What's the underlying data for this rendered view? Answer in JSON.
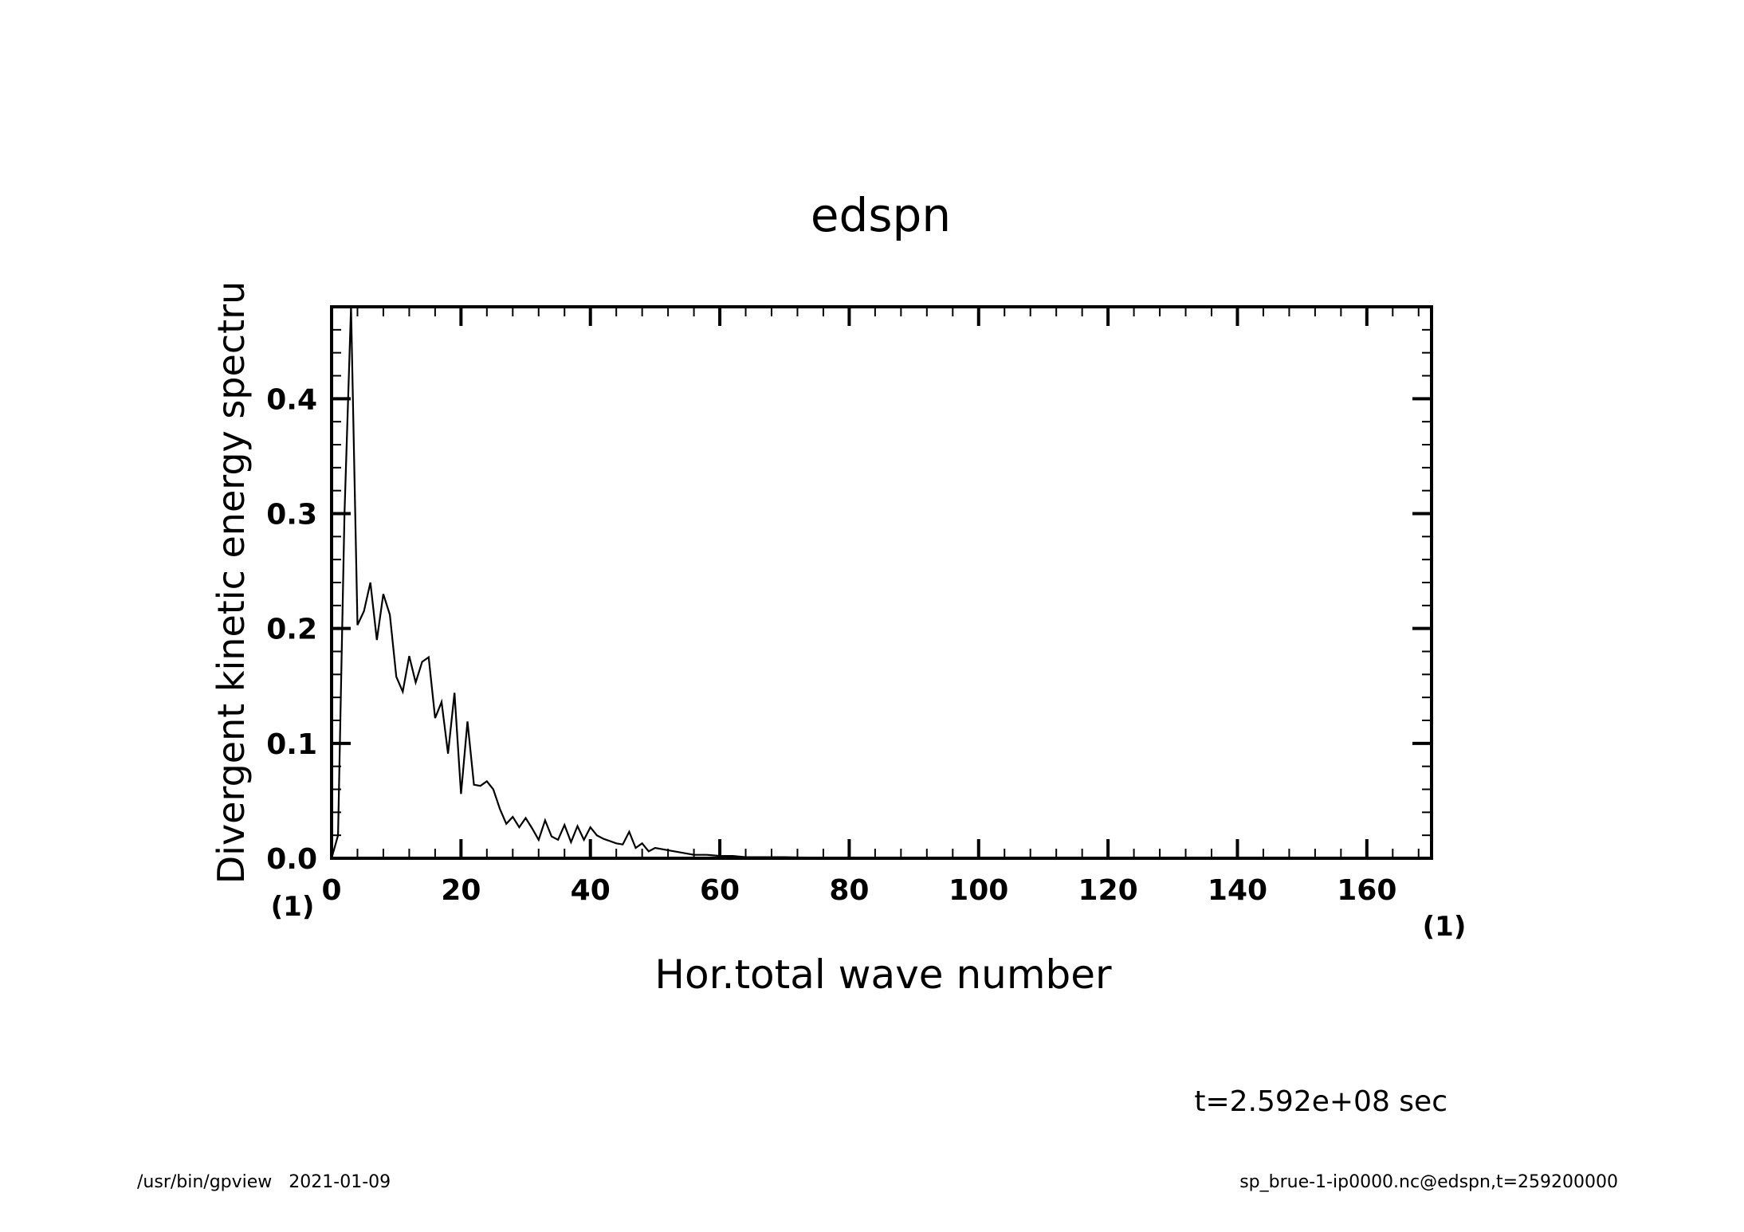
{
  "chart_data": {
    "type": "line",
    "title": "edspn",
    "xlabel": "Hor.total wave number",
    "ylabel": "Divergent kinetic energy spectru",
    "x_unit": "(1)",
    "y_unit": "(1)",
    "xlim": [
      0,
      170
    ],
    "ylim": [
      0,
      0.48
    ],
    "x_ticks": [
      0,
      20,
      40,
      60,
      80,
      100,
      120,
      140,
      160
    ],
    "x_tick_labels": [
      "0",
      "20",
      "40",
      "60",
      "80",
      "100",
      "120",
      "140",
      "160"
    ],
    "y_ticks": [
      0.0,
      0.1,
      0.2,
      0.3,
      0.4
    ],
    "y_tick_labels": [
      "0.0",
      "0.1",
      "0.2",
      "0.3",
      "0.4"
    ],
    "grid": false,
    "series": [
      {
        "x": [
          0,
          1,
          2,
          3,
          4,
          5,
          6,
          7,
          8,
          9,
          10,
          11,
          12,
          13,
          14,
          15,
          16,
          17,
          18,
          19,
          20,
          21,
          22,
          23,
          24,
          25,
          26,
          27,
          28,
          29,
          30,
          31,
          32,
          33,
          34,
          35,
          36,
          37,
          38,
          39,
          40,
          41,
          42,
          43,
          44,
          45,
          46,
          47,
          48,
          49,
          50,
          52,
          54,
          56,
          58,
          60,
          62,
          64,
          66,
          68,
          70,
          75,
          80,
          90,
          100,
          120,
          140,
          160,
          170
        ],
        "y": [
          0.0,
          0.02,
          0.3,
          0.48,
          0.203,
          0.215,
          0.24,
          0.19,
          0.23,
          0.212,
          0.158,
          0.145,
          0.176,
          0.153,
          0.171,
          0.175,
          0.122,
          0.136,
          0.091,
          0.144,
          0.056,
          0.119,
          0.064,
          0.063,
          0.067,
          0.06,
          0.043,
          0.03,
          0.036,
          0.027,
          0.035,
          0.026,
          0.016,
          0.033,
          0.019,
          0.016,
          0.029,
          0.014,
          0.028,
          0.016,
          0.027,
          0.02,
          0.017,
          0.015,
          0.013,
          0.012,
          0.023,
          0.009,
          0.013,
          0.006,
          0.009,
          0.007,
          0.005,
          0.003,
          0.003,
          0.002,
          0.002,
          0.001,
          0.001,
          0.001,
          0.001,
          0.0005,
          0.0003,
          0.0002,
          0.0001,
          0.0,
          0.0,
          0.0,
          0.0
        ]
      }
    ]
  },
  "annotations": {
    "time": "t=2.592e+08 sec",
    "footer_left": "/usr/bin/gpview   2021-01-09",
    "footer_right": "sp_brue-1-ip0000.nc@edspn,t=259200000"
  },
  "colors": {
    "line": "#000000",
    "background": "#ffffff"
  }
}
